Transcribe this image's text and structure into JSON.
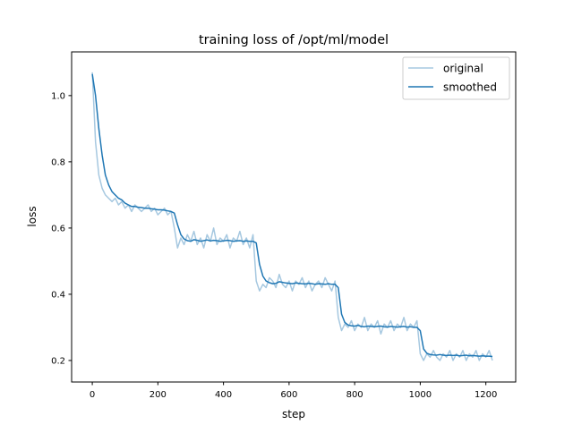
{
  "chart_data": {
    "type": "line",
    "title": "training loss of /opt/ml/model",
    "xlabel": "step",
    "ylabel": "loss",
    "xlim": [
      -63,
      1291
    ],
    "ylim": [
      0.135,
      1.132
    ],
    "xticks": [
      0,
      200,
      400,
      600,
      800,
      1000,
      1200
    ],
    "xtick_labels": [
      "0",
      "200",
      "400",
      "600",
      "800",
      "1000",
      "1200"
    ],
    "yticks": [
      0.2,
      0.4,
      0.6,
      0.8,
      1.0
    ],
    "ytick_labels": [
      "0.2",
      "0.4",
      "0.6",
      "0.8",
      "1.0"
    ],
    "grid": false,
    "legend_position": "top-right",
    "x": [
      0,
      10,
      20,
      30,
      40,
      50,
      60,
      70,
      80,
      90,
      100,
      110,
      120,
      130,
      140,
      150,
      160,
      170,
      180,
      190,
      200,
      210,
      220,
      230,
      240,
      250,
      260,
      270,
      280,
      290,
      300,
      310,
      320,
      330,
      340,
      350,
      360,
      370,
      380,
      390,
      400,
      410,
      420,
      430,
      440,
      450,
      460,
      470,
      480,
      490,
      500,
      510,
      520,
      530,
      540,
      550,
      560,
      570,
      580,
      590,
      600,
      610,
      620,
      630,
      640,
      650,
      660,
      670,
      680,
      690,
      700,
      710,
      720,
      730,
      740,
      750,
      760,
      770,
      780,
      790,
      800,
      810,
      820,
      830,
      840,
      850,
      860,
      870,
      880,
      890,
      900,
      910,
      920,
      930,
      940,
      950,
      960,
      970,
      980,
      990,
      1000,
      1010,
      1020,
      1030,
      1040,
      1050,
      1060,
      1070,
      1080,
      1090,
      1100,
      1110,
      1120,
      1130,
      1140,
      1150,
      1160,
      1170,
      1180,
      1190,
      1200,
      1210,
      1220
    ],
    "series": [
      {
        "name": "original",
        "color": "#a6c8e0",
        "values": [
          1.07,
          0.86,
          0.76,
          0.72,
          0.7,
          0.69,
          0.68,
          0.69,
          0.67,
          0.68,
          0.66,
          0.67,
          0.65,
          0.67,
          0.66,
          0.65,
          0.66,
          0.67,
          0.65,
          0.66,
          0.64,
          0.65,
          0.66,
          0.64,
          0.65,
          0.6,
          0.54,
          0.57,
          0.55,
          0.58,
          0.56,
          0.59,
          0.55,
          0.57,
          0.54,
          0.58,
          0.56,
          0.6,
          0.55,
          0.57,
          0.56,
          0.58,
          0.54,
          0.57,
          0.56,
          0.59,
          0.55,
          0.57,
          0.54,
          0.58,
          0.44,
          0.41,
          0.43,
          0.42,
          0.45,
          0.44,
          0.42,
          0.46,
          0.43,
          0.42,
          0.44,
          0.41,
          0.44,
          0.43,
          0.45,
          0.42,
          0.44,
          0.41,
          0.43,
          0.44,
          0.42,
          0.45,
          0.43,
          0.41,
          0.44,
          0.33,
          0.29,
          0.31,
          0.3,
          0.32,
          0.29,
          0.31,
          0.3,
          0.33,
          0.29,
          0.31,
          0.3,
          0.32,
          0.28,
          0.31,
          0.3,
          0.32,
          0.29,
          0.31,
          0.3,
          0.33,
          0.29,
          0.31,
          0.3,
          0.32,
          0.22,
          0.2,
          0.22,
          0.21,
          0.23,
          0.21,
          0.2,
          0.22,
          0.21,
          0.23,
          0.2,
          0.22,
          0.21,
          0.23,
          0.2,
          0.22,
          0.21,
          0.23,
          0.2,
          0.22,
          0.21,
          0.23,
          0.2
        ]
      },
      {
        "name": "smoothed",
        "color": "#1f77b4",
        "values": [
          1.065,
          1.0,
          0.9,
          0.82,
          0.76,
          0.73,
          0.71,
          0.7,
          0.69,
          0.685,
          0.675,
          0.67,
          0.665,
          0.665,
          0.663,
          0.662,
          0.66,
          0.66,
          0.658,
          0.657,
          0.655,
          0.655,
          0.654,
          0.652,
          0.65,
          0.645,
          0.61,
          0.58,
          0.567,
          0.562,
          0.56,
          0.565,
          0.563,
          0.56,
          0.562,
          0.564,
          0.561,
          0.563,
          0.562,
          0.56,
          0.561,
          0.563,
          0.562,
          0.56,
          0.561,
          0.562,
          0.56,
          0.561,
          0.56,
          0.56,
          0.555,
          0.49,
          0.455,
          0.44,
          0.435,
          0.432,
          0.433,
          0.438,
          0.436,
          0.434,
          0.433,
          0.432,
          0.434,
          0.433,
          0.432,
          0.431,
          0.433,
          0.432,
          0.43,
          0.432,
          0.431,
          0.43,
          0.432,
          0.43,
          0.43,
          0.42,
          0.34,
          0.315,
          0.307,
          0.305,
          0.304,
          0.306,
          0.303,
          0.302,
          0.304,
          0.303,
          0.302,
          0.303,
          0.304,
          0.302,
          0.301,
          0.303,
          0.302,
          0.301,
          0.302,
          0.303,
          0.301,
          0.302,
          0.3,
          0.3,
          0.29,
          0.235,
          0.222,
          0.218,
          0.217,
          0.216,
          0.218,
          0.216,
          0.215,
          0.216,
          0.215,
          0.216,
          0.214,
          0.215,
          0.216,
          0.214,
          0.215,
          0.214,
          0.213,
          0.214,
          0.213,
          0.213,
          0.212
        ]
      }
    ]
  }
}
